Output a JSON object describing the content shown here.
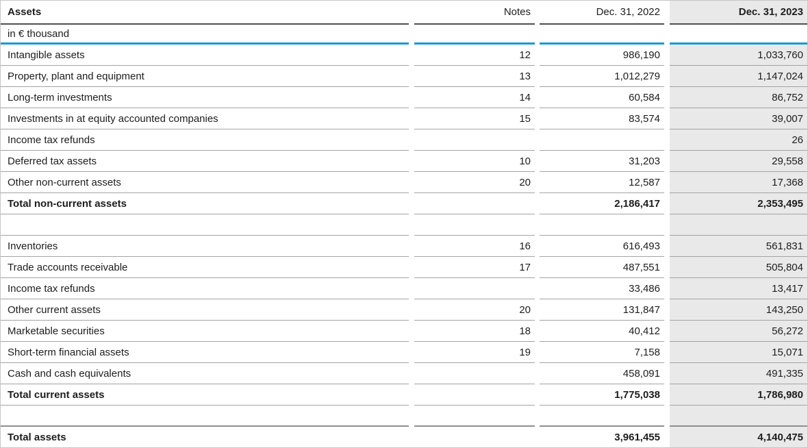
{
  "table": {
    "title": "Assets",
    "unit_label": "in € thousand",
    "columns": {
      "notes": "Notes",
      "y2022": "Dec. 31, 2022",
      "y2023": "Dec. 31, 2023"
    },
    "rows": [
      {
        "label": "Intangible assets",
        "note": "12",
        "v2022": "986,190",
        "v2023": "1,033,760"
      },
      {
        "label": "Property, plant and equipment",
        "note": "13",
        "v2022": "1,012,279",
        "v2023": "1,147,024"
      },
      {
        "label": "Long-term investments",
        "note": "14",
        "v2022": "60,584",
        "v2023": "86,752"
      },
      {
        "label": "Investments in at equity accounted companies",
        "note": "15",
        "v2022": "83,574",
        "v2023": "39,007"
      },
      {
        "label": "Income tax refunds",
        "note": "",
        "v2022": "",
        "v2023": "26"
      },
      {
        "label": "Deferred tax assets",
        "note": "10",
        "v2022": "31,203",
        "v2023": "29,558"
      },
      {
        "label": "Other non-current assets",
        "note": "20",
        "v2022": "12,587",
        "v2023": "17,368"
      },
      {
        "label": "Total non-current assets",
        "note": "",
        "v2022": "2,186,417",
        "v2023": "2,353,495"
      },
      {
        "label": "",
        "note": "",
        "v2022": "",
        "v2023": ""
      },
      {
        "label": "Inventories",
        "note": "16",
        "v2022": "616,493",
        "v2023": "561,831"
      },
      {
        "label": "Trade accounts receivable",
        "note": "17",
        "v2022": "487,551",
        "v2023": "505,804"
      },
      {
        "label": "Income tax refunds",
        "note": "",
        "v2022": "33,486",
        "v2023": "13,417"
      },
      {
        "label": "Other current assets",
        "note": "20",
        "v2022": "131,847",
        "v2023": "143,250"
      },
      {
        "label": "Marketable securities",
        "note": "18",
        "v2022": "40,412",
        "v2023": "56,272"
      },
      {
        "label": "Short-term financial assets",
        "note": "19",
        "v2022": "7,158",
        "v2023": "15,071"
      },
      {
        "label": "Cash and cash equivalents",
        "note": "",
        "v2022": "458,091",
        "v2023": "491,335"
      },
      {
        "label": "Total current assets",
        "note": "",
        "v2022": "1,775,038",
        "v2023": "1,786,980"
      },
      {
        "label": "",
        "note": "",
        "v2022": "",
        "v2023": ""
      },
      {
        "label": "Total assets",
        "note": "",
        "v2022": "3,961,455",
        "v2023": "4,140,475"
      }
    ]
  },
  "colors": {
    "accent_blue": "#149bd7",
    "highlight_bg": "#e9e9e9",
    "separator": "#a3a3a3",
    "header_rule": "#4f4f4f",
    "strong_rule": "#8f8f8f",
    "outer_border": "#c6c6c6",
    "text": "#1d1d1d"
  }
}
